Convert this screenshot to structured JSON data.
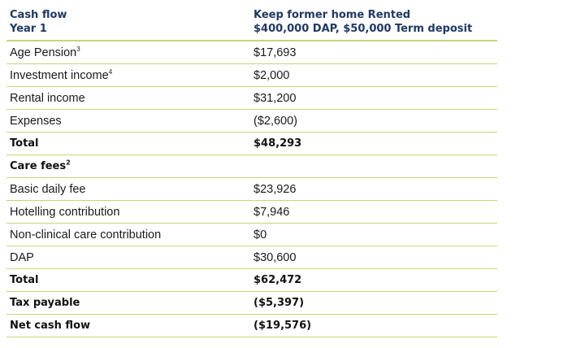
{
  "header": {
    "col1_line1": "Cash flow",
    "col1_line2": "Year 1",
    "col2_line1": "Keep former home Rented",
    "col2_line2": "$400,000 DAP, $50,000 Term deposit"
  },
  "rows": [
    {
      "label": "Age Pension",
      "sup": "3",
      "value": "$17,693",
      "bold": false
    },
    {
      "label": "Investment income",
      "sup": "4",
      "value": "$2,000",
      "bold": false
    },
    {
      "label": "Rental income",
      "sup": "",
      "value": "$31,200",
      "bold": false
    },
    {
      "label": "Expenses",
      "sup": "",
      "value": "($2,600)",
      "bold": false
    },
    {
      "label": "Total",
      "sup": "",
      "value": "$48,293",
      "bold": true
    },
    {
      "label": "Care fees",
      "sup": "2",
      "value": "",
      "bold": true
    },
    {
      "label": "Basic daily fee",
      "sup": "",
      "value": "$23,926",
      "bold": false
    },
    {
      "label": "Hotelling contribution",
      "sup": "",
      "value": "$7,946",
      "bold": false
    },
    {
      "label": "Non-clinical care contribution",
      "sup": "",
      "value": "$0",
      "bold": false
    },
    {
      "label": "DAP",
      "sup": "",
      "value": "$30,600",
      "bold": false
    },
    {
      "label": "Total",
      "sup": "",
      "value": "$62,472",
      "bold": true
    },
    {
      "label": "Tax payable",
      "sup": "",
      "value": "($5,397)",
      "bold": true
    },
    {
      "label": "Net cash flow",
      "sup": "",
      "value": "($19,576)",
      "bold": true
    }
  ]
}
